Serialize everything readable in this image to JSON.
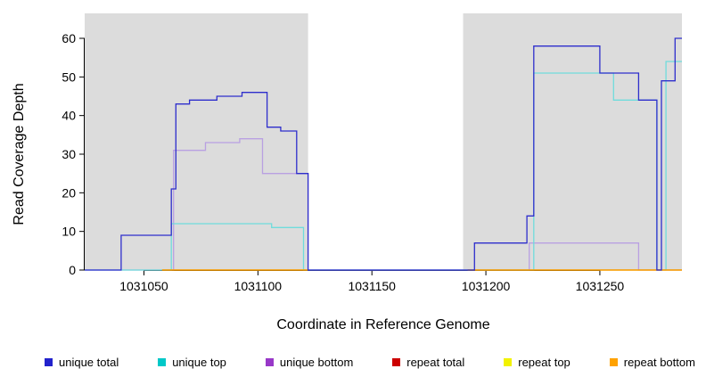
{
  "page": {
    "background": "#ffffff"
  },
  "chart_data": {
    "type": "line",
    "subtype": "step-coverage",
    "title": "",
    "xlabel": "Coordinate in Reference Genome",
    "ylabel": "Read Coverage Depth",
    "xlim": [
      1031024,
      1031286
    ],
    "ylim": [
      0,
      60
    ],
    "x_ticks": [
      1031050,
      1031100,
      1031150,
      1031200,
      1031250
    ],
    "y_ticks": [
      0,
      10,
      20,
      30,
      40,
      50,
      60
    ],
    "grid": false,
    "legend_position": "bottom",
    "shaded_regions": [
      {
        "x0": 1031024,
        "x1": 1031122,
        "color": "#dcdcdc"
      },
      {
        "x0": 1031190,
        "x1": 1031286,
        "color": "#dcdcdc"
      }
    ],
    "draw_order": [
      2,
      1,
      3,
      4,
      5,
      0
    ],
    "series": [
      {
        "name": "unique total",
        "color": "#2e2ecc",
        "swatch": "#2222cc",
        "segments": [
          [
            [
              1031024,
              0
            ],
            [
              1031040,
              9
            ],
            [
              1031062,
              21
            ],
            [
              1031064,
              43
            ],
            [
              1031070,
              44
            ],
            [
              1031082,
              45
            ],
            [
              1031093,
              46
            ],
            [
              1031104,
              37
            ],
            [
              1031110,
              36
            ],
            [
              1031117,
              25
            ],
            [
              1031122,
              0
            ],
            [
              1031195,
              7
            ],
            [
              1031218,
              14
            ],
            [
              1031221,
              58
            ],
            [
              1031250,
              51
            ],
            [
              1031267,
              44
            ],
            [
              1031275,
              0
            ],
            [
              1031277,
              49
            ],
            [
              1031283,
              60
            ],
            [
              1031286,
              60
            ]
          ]
        ]
      },
      {
        "name": "unique top",
        "color": "#6fdcdc",
        "swatch": "#00c8c8",
        "segments": [
          [
            [
              1031024,
              0
            ],
            [
              1031062,
              12
            ],
            [
              1031106,
              11
            ],
            [
              1031120,
              0
            ],
            [
              1031221,
              51
            ],
            [
              1031256,
              44
            ],
            [
              1031275,
              0
            ],
            [
              1031279,
              54
            ],
            [
              1031286,
              54
            ]
          ]
        ]
      },
      {
        "name": "unique bottom",
        "color": "#b9a0e2",
        "swatch": "#9838c8",
        "segments": [
          [
            [
              1031024,
              0
            ],
            [
              1031063,
              31
            ],
            [
              1031077,
              33
            ],
            [
              1031092,
              34
            ],
            [
              1031102,
              25
            ],
            [
              1031122,
              0
            ],
            [
              1031219,
              7
            ],
            [
              1031267,
              0
            ],
            [
              1031286,
              0
            ]
          ]
        ]
      },
      {
        "name": "repeat total",
        "color": "#cc0000",
        "swatch": "#cc0000",
        "segments": [
          [
            [
              1031058,
              0
            ],
            [
              1031122,
              0
            ]
          ],
          [
            [
              1031192,
              0
            ],
            [
              1031286,
              0
            ]
          ]
        ]
      },
      {
        "name": "repeat top",
        "color": "#f2f200",
        "swatch": "#f2f200",
        "segments": [
          [
            [
              1031058,
              0
            ],
            [
              1031122,
              0
            ]
          ],
          [
            [
              1031192,
              0
            ],
            [
              1031286,
              0
            ]
          ]
        ]
      },
      {
        "name": "repeat bottom",
        "color": "#ffa200",
        "swatch": "#ffa200",
        "segments": [
          [
            [
              1031058,
              0
            ],
            [
              1031122,
              0
            ]
          ],
          [
            [
              1031192,
              0
            ],
            [
              1031286,
              0
            ]
          ]
        ]
      }
    ]
  }
}
